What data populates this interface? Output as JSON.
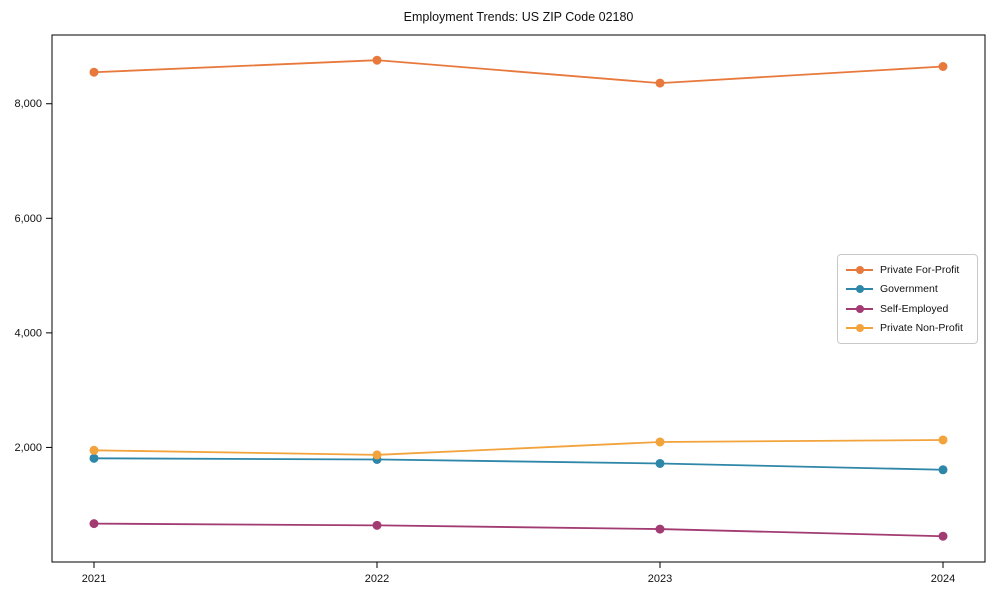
{
  "chart_data": {
    "type": "line",
    "title": "Employment Trends: US ZIP Code 02180",
    "categories": [
      "2021",
      "2022",
      "2023",
      "2024"
    ],
    "series": [
      {
        "name": "Private For-Profit",
        "color": "#E8793D",
        "values": [
          8550,
          8760,
          8360,
          8650
        ]
      },
      {
        "name": "Government",
        "color": "#2E86A8",
        "values": [
          1810,
          1790,
          1720,
          1610
        ]
      },
      {
        "name": "Self-Employed",
        "color": "#A23B72",
        "values": [
          670,
          640,
          575,
          450
        ]
      },
      {
        "name": "Private Non-Profit",
        "color": "#F2A33C",
        "values": [
          1950,
          1870,
          2095,
          2130
        ]
      }
    ],
    "xlabel": "",
    "ylabel": "",
    "ylim": [
      0,
      9200
    ],
    "yticks": [
      {
        "value": 2000,
        "label": "2,000"
      },
      {
        "value": 4000,
        "label": "4,000"
      },
      {
        "value": 6000,
        "label": "6,000"
      },
      {
        "value": 8000,
        "label": "8,000"
      }
    ],
    "grid": false,
    "legend_position": "right",
    "axis_color": "#000000",
    "tick_label_color": "#111111",
    "background": "#ffffff",
    "marker": "circle"
  }
}
